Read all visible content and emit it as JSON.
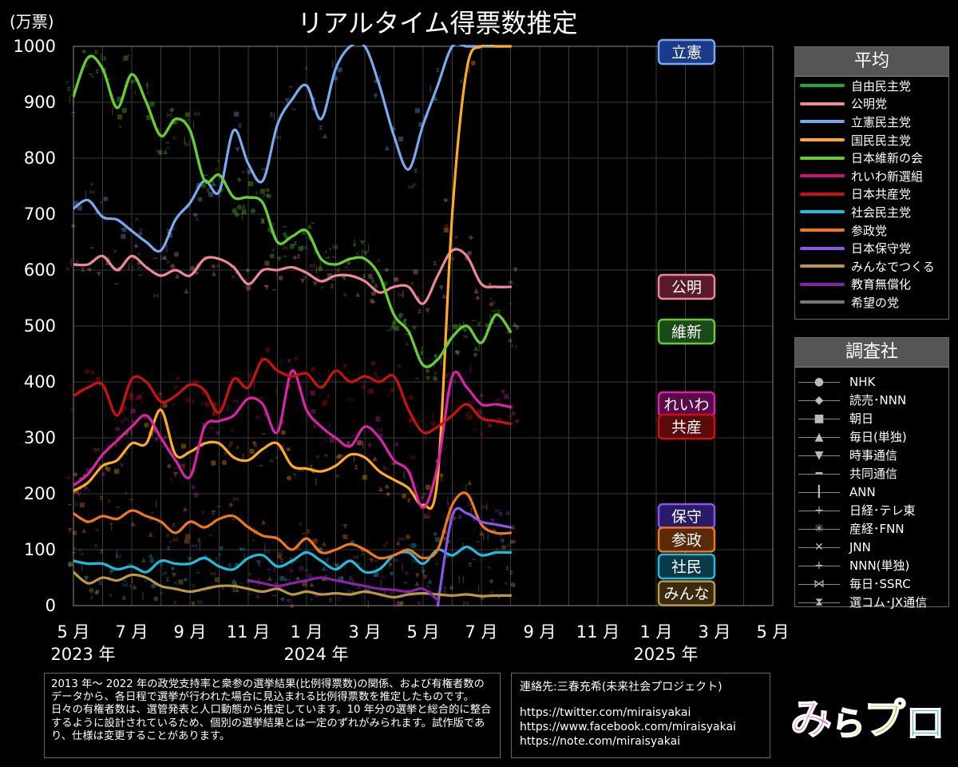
{
  "chart_data": {
    "type": "line",
    "title": "リアルタイム得票数推定",
    "ylabel": "(万票)",
    "ylim": [
      0,
      1000
    ],
    "yticks": [
      0,
      100,
      200,
      300,
      400,
      500,
      600,
      700,
      800,
      900,
      1000
    ],
    "xlim": [
      "2023-05",
      "2025-05"
    ],
    "xticks": [
      "5 月",
      "7 月",
      "9 月",
      "11 月",
      "1 月",
      "3 月",
      "5 月",
      "7 月",
      "9 月",
      "11 月",
      "1 月",
      "3 月",
      "5 月"
    ],
    "year_labels": [
      "2023 年",
      "2024 年",
      "2025 年"
    ],
    "grid": true,
    "x_months": [
      0,
      0.5,
      1,
      1.5,
      2,
      2.5,
      3,
      3.5,
      4,
      4.5,
      5,
      5.5,
      6,
      6.5,
      7,
      7.5,
      8,
      8.5,
      9,
      9.5,
      10,
      10.5,
      11,
      11.5,
      12,
      12.5,
      13,
      13.5,
      14,
      14.5,
      15,
      15.5,
      16,
      16.5,
      17,
      17.5,
      18,
      18.5,
      19,
      19.5,
      20
    ],
    "series": [
      {
        "name": "自由民主党",
        "color": "#66cc33",
        "values": [
          910,
          980,
          960,
          890,
          950,
          900,
          840,
          870,
          850,
          760,
          770,
          730,
          730,
          720,
          650,
          660,
          670,
          620,
          610,
          620,
          620,
          590,
          520,
          490,
          430,
          440,
          480,
          500,
          470,
          520,
          490,
          null,
          null,
          null,
          null,
          null,
          null,
          null,
          null,
          null,
          null
        ]
      },
      {
        "name": "公明党",
        "color": "#ee8899",
        "values": [
          610,
          610,
          625,
          600,
          625,
          605,
          590,
          600,
          590,
          620,
          620,
          605,
          575,
          600,
          600,
          605,
          595,
          580,
          590,
          590,
          580,
          560,
          570,
          570,
          540,
          590,
          635,
          625,
          575,
          570,
          570,
          null,
          null,
          null,
          null,
          null,
          null,
          null,
          null,
          null,
          null
        ]
      },
      {
        "name": "立憲民主党",
        "color": "#77aaee",
        "values": [
          710,
          725,
          695,
          690,
          670,
          650,
          635,
          690,
          720,
          760,
          740,
          850,
          790,
          760,
          860,
          905,
          930,
          870,
          960,
          1000,
          1000,
          930,
          840,
          780,
          860,
          930,
          1000,
          1000,
          1000,
          1000,
          1000,
          null,
          null,
          null,
          null,
          null,
          null,
          null,
          null,
          null,
          null
        ]
      },
      {
        "name": "国民民主党",
        "color": "#ffaa22",
        "values": [
          205,
          220,
          250,
          260,
          290,
          290,
          350,
          270,
          275,
          290,
          290,
          265,
          260,
          280,
          290,
          250,
          245,
          240,
          250,
          270,
          265,
          240,
          225,
          210,
          180,
          230,
          700,
          960,
          1000,
          1000,
          1000,
          null,
          null,
          null,
          null,
          null,
          null,
          null,
          null,
          null,
          null
        ]
      },
      {
        "name": "日本維新の会",
        "color": "#66cc33",
        "values": [
          910,
          980,
          960,
          890,
          950,
          900,
          840,
          870,
          850,
          760,
          770,
          730,
          730,
          720,
          650,
          660,
          670,
          620,
          610,
          620,
          620,
          590,
          520,
          490,
          430,
          440,
          480,
          500,
          470,
          520,
          490,
          null,
          null,
          null,
          null,
          null,
          null,
          null,
          null,
          null,
          null
        ]
      },
      {
        "name": "れいわ新選組",
        "color": "#dd22aa",
        "values": [
          215,
          235,
          270,
          295,
          320,
          340,
          300,
          260,
          230,
          320,
          330,
          340,
          370,
          360,
          310,
          420,
          350,
          320,
          300,
          285,
          320,
          300,
          260,
          240,
          175,
          250,
          410,
          390,
          360,
          360,
          355,
          null,
          null,
          null,
          null,
          null,
          null,
          null,
          null,
          null,
          null
        ]
      },
      {
        "name": "日本共産党",
        "color": "#cc1111",
        "values": [
          375,
          390,
          395,
          340,
          405,
          400,
          365,
          375,
          395,
          385,
          345,
          405,
          390,
          440,
          420,
          410,
          415,
          390,
          420,
          400,
          410,
          400,
          410,
          350,
          310,
          320,
          340,
          360,
          335,
          330,
          325,
          null,
          null,
          null,
          null,
          null,
          null,
          null,
          null,
          null,
          null
        ]
      },
      {
        "name": "社会民主党",
        "color": "#22bbdd",
        "values": [
          80,
          75,
          75,
          65,
          70,
          60,
          80,
          75,
          75,
          85,
          70,
          65,
          85,
          90,
          70,
          80,
          95,
          80,
          65,
          80,
          60,
          65,
          90,
          95,
          75,
          100,
          90,
          105,
          90,
          95,
          95,
          null,
          null,
          null,
          null,
          null,
          null,
          null,
          null,
          null,
          null
        ]
      },
      {
        "name": "参政党",
        "color": "#ee7722",
        "values": [
          165,
          150,
          160,
          155,
          170,
          160,
          150,
          130,
          150,
          140,
          155,
          160,
          140,
          125,
          120,
          100,
          120,
          95,
          100,
          110,
          100,
          85,
          90,
          100,
          85,
          100,
          180,
          200,
          145,
          130,
          130,
          null,
          null,
          null,
          null,
          null,
          null,
          null,
          null,
          null,
          null
        ]
      },
      {
        "name": "日本保守党",
        "color": "#8855ee",
        "values": [
          null,
          null,
          null,
          null,
          null,
          null,
          null,
          null,
          null,
          null,
          null,
          null,
          null,
          null,
          null,
          null,
          null,
          null,
          null,
          null,
          null,
          null,
          null,
          null,
          null,
          0,
          160,
          165,
          150,
          145,
          140,
          null,
          null,
          null,
          null,
          null,
          null,
          null,
          null,
          null,
          null
        ]
      },
      {
        "name": "みんなでつくる",
        "color": "#bb9944",
        "values": [
          60,
          40,
          50,
          45,
          55,
          50,
          35,
          30,
          25,
          30,
          35,
          35,
          30,
          25,
          30,
          20,
          25,
          20,
          22,
          20,
          25,
          20,
          15,
          20,
          22,
          20,
          18,
          20,
          17,
          18,
          18,
          null,
          null,
          null,
          null,
          null,
          null,
          null,
          null,
          null,
          null
        ]
      },
      {
        "name": "教育無償化",
        "color": "#8822aa",
        "values": [
          null,
          null,
          null,
          null,
          null,
          null,
          null,
          null,
          null,
          null,
          null,
          null,
          45,
          40,
          35,
          40,
          45,
          50,
          45,
          40,
          35,
          30,
          28,
          25,
          30,
          10,
          null,
          null,
          null,
          null,
          null,
          null,
          null,
          null,
          null,
          null,
          null,
          null,
          null,
          null,
          null
        ]
      },
      {
        "name": "希望の党",
        "color": "#777777",
        "values": [
          null,
          null,
          null,
          null,
          null,
          null,
          null,
          null,
          null,
          null,
          null,
          null,
          null,
          null,
          null,
          null,
          null,
          null,
          null,
          null,
          null,
          null,
          null,
          null,
          null,
          null,
          null,
          null,
          null,
          null,
          null,
          null,
          null,
          null,
          null,
          null,
          null,
          null,
          null,
          null,
          null
        ]
      }
    ],
    "end_labels": [
      {
        "text": "立憲",
        "value": 990,
        "color": "#77aaee",
        "bg": "#1a3a8a"
      },
      {
        "text": "公明",
        "value": 570,
        "color": "#ee8899",
        "bg": "#5a1a2a"
      },
      {
        "text": "維新",
        "value": 490,
        "color": "#66cc33",
        "bg": "#1a4a1a"
      },
      {
        "text": "れいわ",
        "value": 360,
        "color": "#dd22aa",
        "bg": "#5a0a4a"
      },
      {
        "text": "共産",
        "value": 320,
        "color": "#cc1111",
        "bg": "#5a0a0a"
      },
      {
        "text": "保守",
        "value": 160,
        "color": "#8855ee",
        "bg": "#2a1a6a"
      },
      {
        "text": "参政",
        "value": 118,
        "color": "#ee7722",
        "bg": "#5a2a0a"
      },
      {
        "text": "社民",
        "value": 70,
        "color": "#22bbdd",
        "bg": "#0a3a4a"
      },
      {
        "text": "みんな",
        "value": 22,
        "color": "#bb9944",
        "bg": "#3a2a10"
      }
    ]
  },
  "legend_avg": {
    "title": "平均",
    "items": [
      {
        "label": "自由民主党",
        "color": "#22aa33"
      },
      {
        "label": "公明党",
        "color": "#ee8899"
      },
      {
        "label": "立憲民主党",
        "color": "#77aaee"
      },
      {
        "label": "国民民主党",
        "color": "#ffaa22"
      },
      {
        "label": "日本維新の会",
        "color": "#66cc33"
      },
      {
        "label": "れいわ新選組",
        "color": "#cc1177"
      },
      {
        "label": "日本共産党",
        "color": "#cc1111"
      },
      {
        "label": "社会民主党",
        "color": "#22bbdd"
      },
      {
        "label": "参政党",
        "color": "#ee7722"
      },
      {
        "label": "日本保守党",
        "color": "#8855ee"
      },
      {
        "label": "みんなでつくる",
        "color": "#bb9944"
      },
      {
        "label": "教育無償化",
        "color": "#8822aa"
      },
      {
        "label": "希望の党",
        "color": "#777777"
      }
    ]
  },
  "legend_pollsters": {
    "title": "調査社",
    "items": [
      {
        "label": "NHK",
        "marker": "●"
      },
      {
        "label": "読売･NNN",
        "marker": "◆"
      },
      {
        "label": "朝日",
        "marker": "■"
      },
      {
        "label": "毎日(単独)",
        "marker": "▲"
      },
      {
        "label": "時事通信",
        "marker": "▼"
      },
      {
        "label": "共同通信",
        "marker": "━"
      },
      {
        "label": "ANN",
        "marker": "┃"
      },
      {
        "label": "日経･テレ東",
        "marker": "+"
      },
      {
        "label": "産経･FNN",
        "marker": "✳"
      },
      {
        "label": "JNN",
        "marker": "✕"
      },
      {
        "label": "NNN(単独)",
        "marker": "+"
      },
      {
        "label": "毎日･SSRC",
        "marker": "⋈"
      },
      {
        "label": "選コム･JX通信",
        "marker": "⧗"
      }
    ]
  },
  "note": "2013 年～ 2022 年の政党支持率と衆参の選挙結果(比例得票数)の関係、および有権者数のデータから、各日程で選挙が行われた場合に見込まれる比例得票数を推定したものです。日々の有権者数は、選管発表と人口動態から推定しています。10 年分の選挙と総合的に整合するように設計されているため、個別の選挙結果とは一定のずれがみられます。試作版であり、仕様は変更することがあります。",
  "contact": {
    "label": "連絡先:三春充希(未来社会プロジェクト)",
    "links": [
      "https://twitter.com/miraisyakai",
      "https://www.facebook.com/miraisyakai",
      "https://note.com/miraisyakai"
    ]
  },
  "logo_text": "みらプロ"
}
